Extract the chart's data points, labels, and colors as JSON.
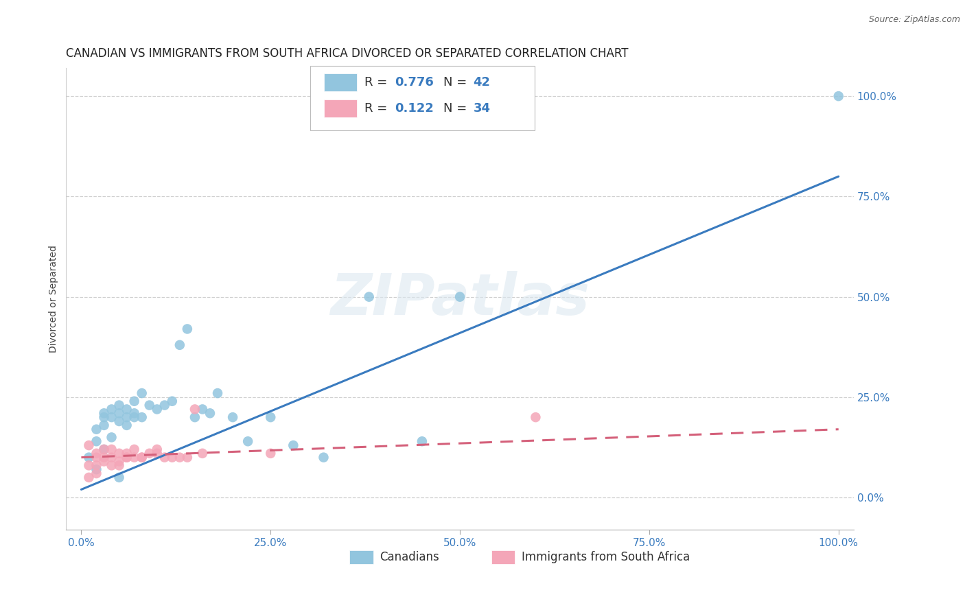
{
  "title": "CANADIAN VS IMMIGRANTS FROM SOUTH AFRICA DIVORCED OR SEPARATED CORRELATION CHART",
  "source": "Source: ZipAtlas.com",
  "ylabel": "Divorced or Separated",
  "watermark": "ZIPatlas",
  "canadians_R": 0.776,
  "canadians_N": 42,
  "immigrants_R": 0.122,
  "immigrants_N": 34,
  "blue_scatter_color": "#92c5de",
  "pink_scatter_color": "#f4a6b8",
  "blue_line_color": "#3a7bbf",
  "pink_line_color": "#d4607a",
  "canadians_x": [
    1,
    2,
    2,
    3,
    3,
    3,
    4,
    4,
    5,
    5,
    5,
    6,
    6,
    6,
    7,
    7,
    8,
    8,
    9,
    10,
    11,
    12,
    13,
    14,
    15,
    16,
    17,
    18,
    20,
    22,
    25,
    28,
    32,
    38,
    45,
    50,
    2,
    3,
    4,
    5,
    7,
    100
  ],
  "canadians_y": [
    10,
    14,
    17,
    18,
    20,
    21,
    20,
    22,
    19,
    21,
    23,
    18,
    20,
    22,
    21,
    24,
    20,
    26,
    23,
    22,
    23,
    24,
    38,
    42,
    20,
    22,
    21,
    26,
    20,
    14,
    20,
    13,
    10,
    50,
    14,
    50,
    7,
    12,
    15,
    5,
    20,
    100
  ],
  "immigrants_x": [
    1,
    1,
    2,
    2,
    2,
    3,
    3,
    4,
    4,
    5,
    5,
    6,
    6,
    7,
    7,
    8,
    9,
    10,
    11,
    12,
    14,
    15,
    60,
    1,
    2,
    3,
    4,
    5,
    6,
    8,
    10,
    13,
    16,
    25
  ],
  "immigrants_y": [
    8,
    13,
    8,
    10,
    11,
    10,
    12,
    10,
    12,
    8,
    11,
    10,
    11,
    10,
    12,
    10,
    11,
    12,
    10,
    10,
    10,
    22,
    20,
    5,
    6,
    9,
    8,
    9,
    10,
    10,
    11,
    10,
    11,
    11
  ],
  "blue_line_x0": 0,
  "blue_line_y0": 2,
  "blue_line_x1": 100,
  "blue_line_y1": 80,
  "pink_line_x0": 0,
  "pink_line_y0": 10,
  "pink_line_x1": 100,
  "pink_line_y1": 17,
  "xlim": [
    -2,
    102
  ],
  "ylim": [
    -8,
    107
  ],
  "xticks": [
    0,
    25,
    50,
    75,
    100
  ],
  "xtick_labels": [
    "0.0%",
    "25.0%",
    "50.0%",
    "75.0%",
    "100.0%"
  ],
  "yticks_right": [
    0,
    25,
    50,
    75,
    100
  ],
  "ytick_labels_right": [
    "0.0%",
    "25.0%",
    "50.0%",
    "75.0%",
    "100.0%"
  ],
  "grid_color": "#d0d0d0",
  "bg_color": "#ffffff",
  "title_fontsize": 12,
  "axis_label_fontsize": 10,
  "tick_fontsize": 11,
  "legend_fontsize": 13,
  "source_fontsize": 9
}
